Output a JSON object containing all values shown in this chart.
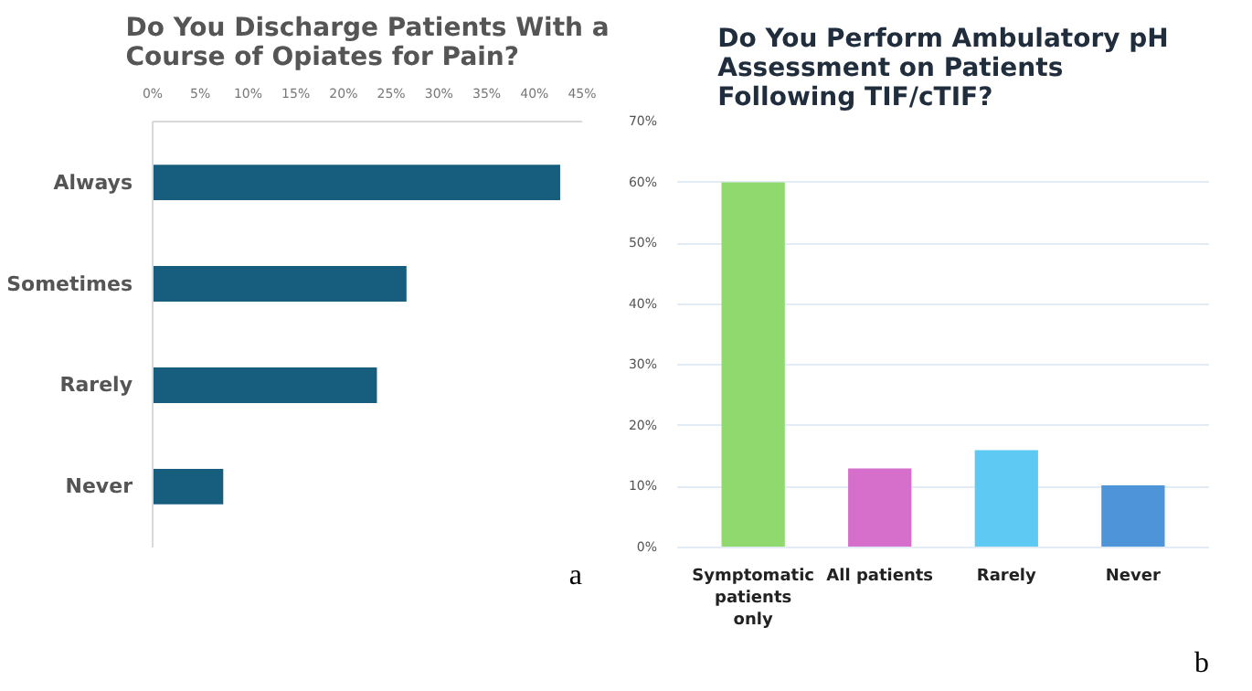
{
  "chart_data": [
    {
      "type": "bar",
      "orientation": "horizontal",
      "title": "Do You Discharge Patients With a Course of Opiates for Pain?",
      "categories": [
        "Always",
        "Sometimes",
        "Rarely",
        "Never"
      ],
      "values": [
        42.7,
        26.6,
        23.5,
        7.4
      ],
      "color": "#175e7e",
      "xlim": [
        0,
        45
      ],
      "xticks": [
        {
          "value": 0,
          "label": "0%"
        },
        {
          "value": 5,
          "label": "5%"
        },
        {
          "value": 10,
          "label": "10%"
        },
        {
          "value": 15,
          "label": "15%"
        },
        {
          "value": 20,
          "label": "20%"
        },
        {
          "value": 25,
          "label": "25%"
        },
        {
          "value": 30,
          "label": "30%"
        },
        {
          "value": 35,
          "label": "35%"
        },
        {
          "value": 40,
          "label": "40%"
        },
        {
          "value": 45,
          "label": "45%"
        }
      ],
      "grid": false,
      "annotations": [
        "a"
      ]
    },
    {
      "type": "bar",
      "title": "Do You Perform Ambulatory pH Assessment on Patients Following TIF/cTIF?",
      "categories": [
        "Symptomatic patients only",
        "All patients",
        "Rarely",
        "Never"
      ],
      "values": [
        60,
        13,
        16,
        10.2
      ],
      "colors": [
        "#8fd96f",
        "#d66fcb",
        "#5ec9f2",
        "#4e94d8"
      ],
      "ylim": [
        0,
        70
      ],
      "yticks": [
        {
          "value": 0,
          "label": "0%"
        },
        {
          "value": 10,
          "label": "10%"
        },
        {
          "value": 20,
          "label": "20%"
        },
        {
          "value": 30,
          "label": "30%"
        },
        {
          "value": 40,
          "label": "40%"
        },
        {
          "value": 50,
          "label": "50%"
        },
        {
          "value": 60,
          "label": "60%"
        },
        {
          "value": 70,
          "label": "70%"
        }
      ],
      "grid": "y",
      "annotations": [
        "b"
      ]
    }
  ]
}
